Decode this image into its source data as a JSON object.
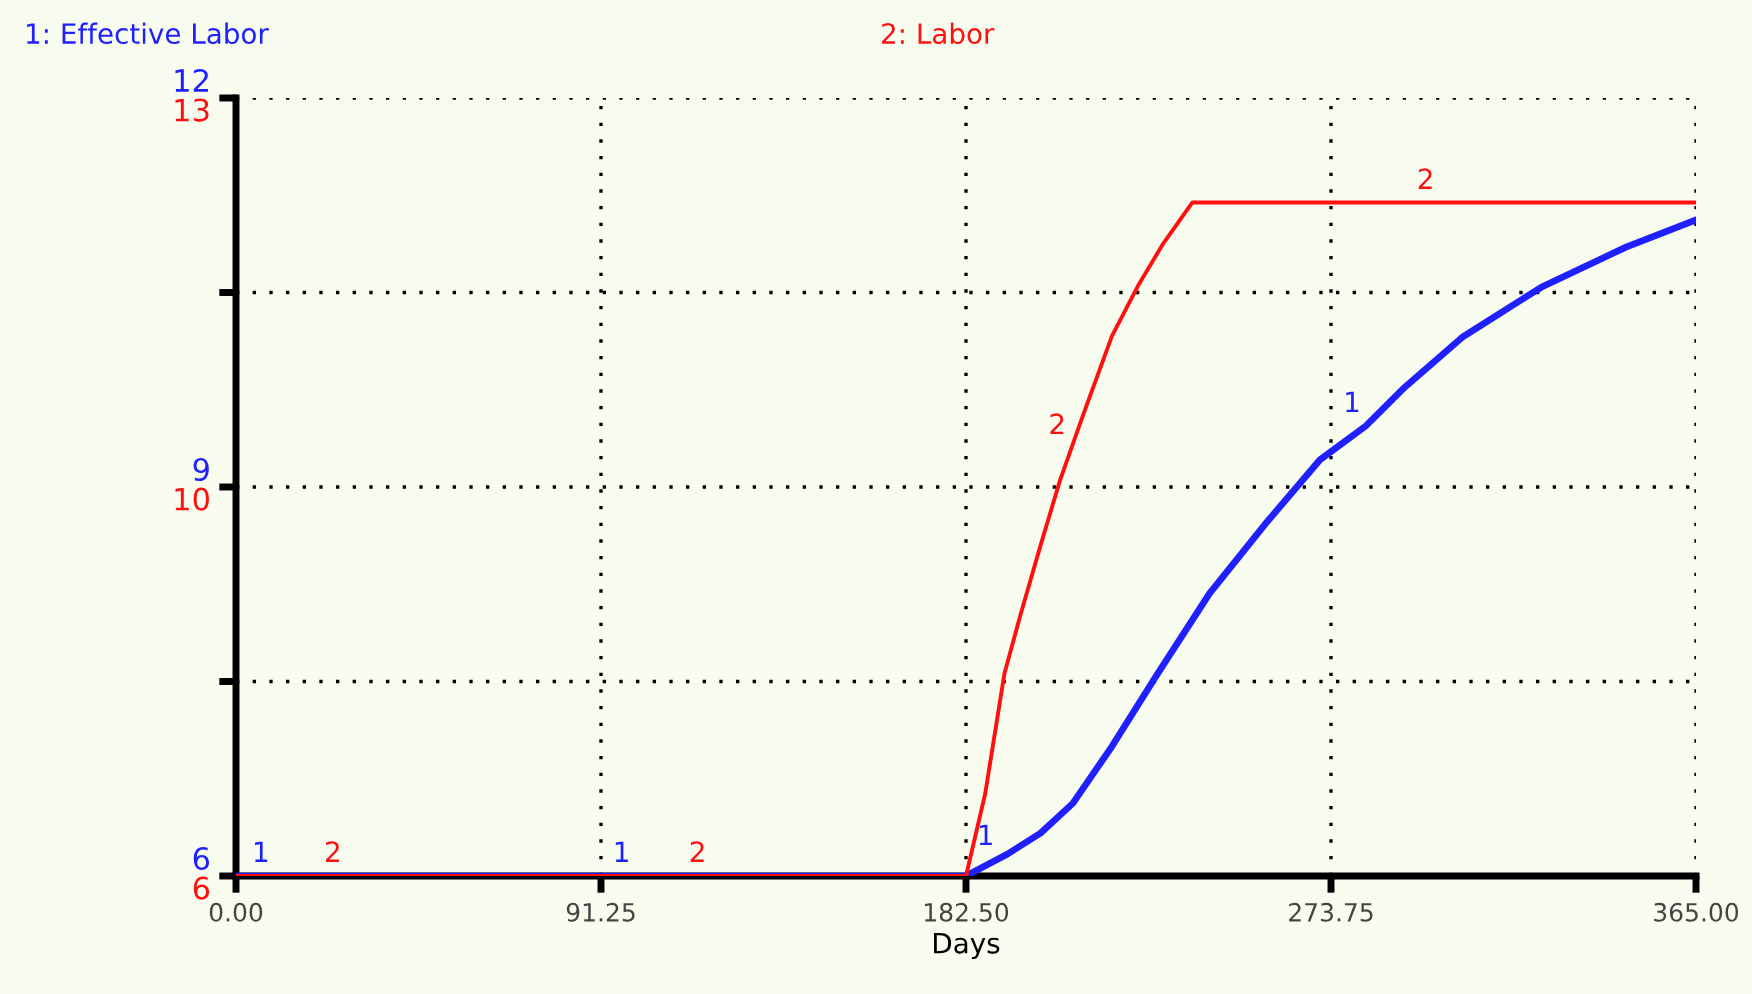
{
  "chart_data": {
    "type": "line",
    "xlabel": "Days",
    "legend": "top",
    "grid": true,
    "line_style": "solid",
    "marker": "none",
    "xlim": [
      0,
      365
    ],
    "xticks": [
      {
        "value": 0,
        "label": "0.00"
      },
      {
        "value": 91.25,
        "label": "91.25"
      },
      {
        "value": 182.5,
        "label": "182.50"
      },
      {
        "value": 273.75,
        "label": "273.75"
      },
      {
        "value": 365,
        "label": "365.00"
      }
    ],
    "ylim": [
      6,
      12
    ],
    "yticks": [
      6,
      {
        "value": 7.5,
        "label": null
      },
      9,
      {
        "value": 10.5,
        "label": null
      },
      12
    ],
    "y2lim": [
      6,
      13
    ],
    "y2ticks": [
      6,
      {
        "value": 9.5,
        "label": "10"
      },
      13
    ],
    "series": [
      {
        "name": "1: Effective Labor",
        "color": "#2020ff",
        "x": [
          0,
          182.5,
          192.9,
          201.1,
          209.2,
          219.0,
          230.4,
          243.4,
          258.0,
          271.0,
          282.4,
          292.2,
          306.8,
          326.3,
          347.5,
          365
        ],
        "values": [
          6,
          6,
          6.17,
          6.33,
          6.56,
          7.0,
          7.56,
          8.18,
          8.74,
          9.21,
          9.47,
          9.77,
          10.16,
          10.54,
          10.85,
          11.06
        ]
      },
      {
        "name": "2: Labor",
        "color": "#ff1010",
        "axis": "y2",
        "x": [
          0,
          182.5,
          187.3,
          192.1,
          196.2,
          201.1,
          206.0,
          211.7,
          219.0,
          225.5,
          231.8,
          239.1,
          365
        ],
        "values": [
          6,
          6,
          6.74,
          7.82,
          8.36,
          8.97,
          9.56,
          10.14,
          10.86,
          11.31,
          11.69,
          12.06,
          12.06
        ]
      }
    ],
    "annotations": [
      {
        "text": "1",
        "x": 9.8,
        "y": 6
      },
      {
        "text": "1",
        "x": 100,
        "y": 6
      },
      {
        "text": "1",
        "x": 191,
        "y": 6.13
      },
      {
        "text": "1",
        "x": 282.6,
        "y": 9.47
      },
      {
        "text": "2",
        "x": 27.8,
        "y": 6
      },
      {
        "text": "2",
        "x": 119,
        "y": 6
      },
      {
        "text": "2",
        "x": 208.9,
        "y": 9.3
      },
      {
        "text": "2",
        "x": 301,
        "y": 11.19
      }
    ]
  }
}
